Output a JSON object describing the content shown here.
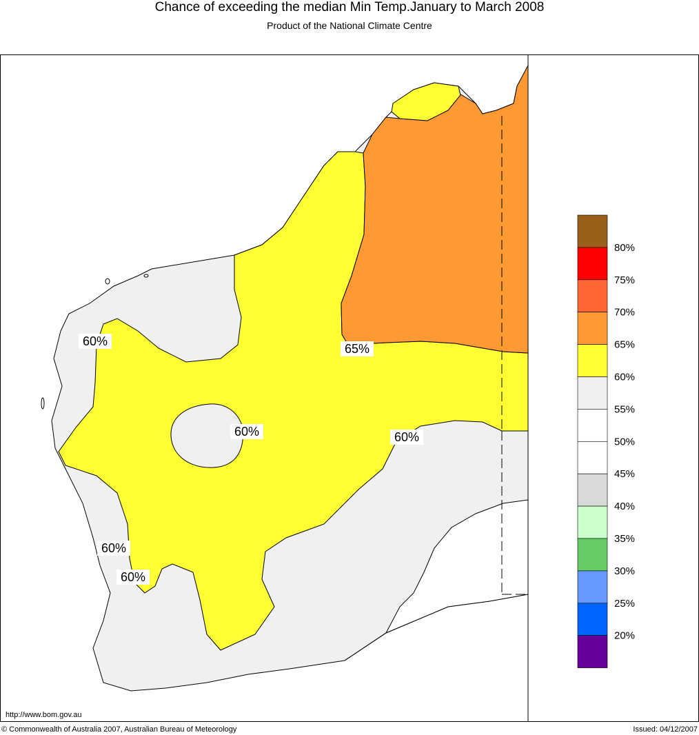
{
  "header": {
    "title": "Chance of exceeding the median Min Temp.January to March 2008",
    "subtitle": "Product of the National Climate Centre"
  },
  "map": {
    "regions": [
      {
        "name": "northern-kimberley-orange",
        "category": "65-70%",
        "color": "#ff9933"
      },
      {
        "name": "central-yellow",
        "category": "60-65%",
        "color": "#ffff33"
      },
      {
        "name": "coastal-and-south-grey",
        "category": "55-60%",
        "color": "#f0f0f0"
      },
      {
        "name": "southeast-white",
        "category": "50-55%",
        "color": "#ffffff"
      }
    ],
    "contour_labels": [
      "60%",
      "65%",
      "60%",
      "60%",
      "60%",
      "60%"
    ]
  },
  "legend": {
    "colors": [
      "#9a5f1b",
      "#ff0000",
      "#ff6633",
      "#ff9933",
      "#ffff33",
      "#f0f0f0",
      "#ffffff",
      "#ffffff",
      "#d9d9d9",
      "#ccffcc",
      "#66cc66",
      "#6699ff",
      "#0066ff",
      "#660099"
    ],
    "labels": [
      "80%",
      "75%",
      "70%",
      "65%",
      "60%",
      "55%",
      "50%",
      "45%",
      "40%",
      "35%",
      "30%",
      "25%",
      "20%"
    ]
  },
  "footer": {
    "url": "http://www.bom.gov.au",
    "copyright": "© Commonwealth of Australia 2007, Australian Bureau of Meteorology",
    "issued": "Issued: 04/12/2007"
  }
}
